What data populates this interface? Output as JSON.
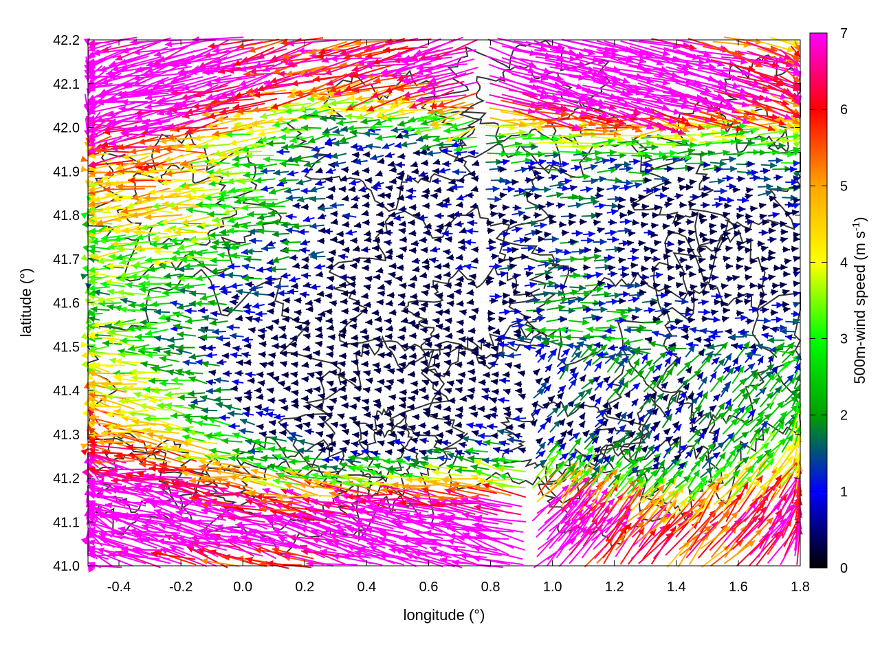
{
  "chart_data": {
    "type": "vector_field",
    "xlabel": "longitude (°)",
    "ylabel": "latitude (°)",
    "xlim": [
      -0.5,
      1.8
    ],
    "ylim": [
      41.0,
      42.2
    ],
    "xticks": [
      "-0.4",
      "-0.2",
      "0.0",
      "0.2",
      "0.4",
      "0.6",
      "0.8",
      "1.0",
      "1.2",
      "1.4",
      "1.6",
      "1.8"
    ],
    "yticks": [
      "41.0",
      "41.1",
      "41.2",
      "41.3",
      "41.4",
      "41.5",
      "41.6",
      "41.7",
      "41.8",
      "41.9",
      "42.0",
      "42.1",
      "42.2"
    ],
    "grid": true,
    "colorbar": {
      "label": "500m-wind speed (m s-1)",
      "label_main": "500m-wind speed (m s",
      "label_sup": "-1",
      "label_end": ")",
      "range": [
        0,
        7
      ],
      "ticks": [
        "0",
        "1",
        "2",
        "3",
        "4",
        "5",
        "6",
        "7"
      ],
      "palette": [
        "#000000",
        "#0000ff",
        "#00a000",
        "#00ff00",
        "#ffff00",
        "#ffa500",
        "#ff0000",
        "#ff00ff"
      ]
    },
    "field_description": "Wind vectors colored by speed with dark terrain contour lines; strong easterly flow (~7 m/s) at north and south edges, weak variable flow (<3 m/s) in central valley",
    "contour_color": "#333333"
  }
}
